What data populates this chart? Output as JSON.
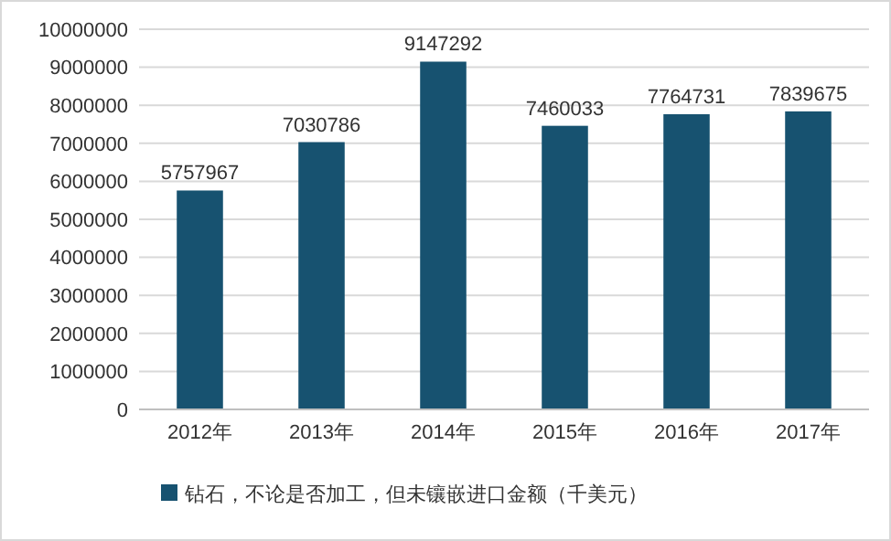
{
  "chart_data": {
    "type": "bar",
    "categories": [
      "2012年",
      "2013年",
      "2014年",
      "2015年",
      "2016年",
      "2017年"
    ],
    "series": [
      {
        "name": "钻石，不论是否加工，但未镶嵌进口金额（千美元）",
        "color": "#175270",
        "values": [
          5757967,
          7030786,
          9147292,
          7460033,
          7764731,
          7839675
        ]
      }
    ],
    "ylim": [
      0,
      10000000
    ],
    "yticks": [
      0,
      1000000,
      2000000,
      3000000,
      4000000,
      5000000,
      6000000,
      7000000,
      8000000,
      9000000,
      10000000
    ],
    "grid": "y",
    "legend": "bottom",
    "data_labels": true
  }
}
